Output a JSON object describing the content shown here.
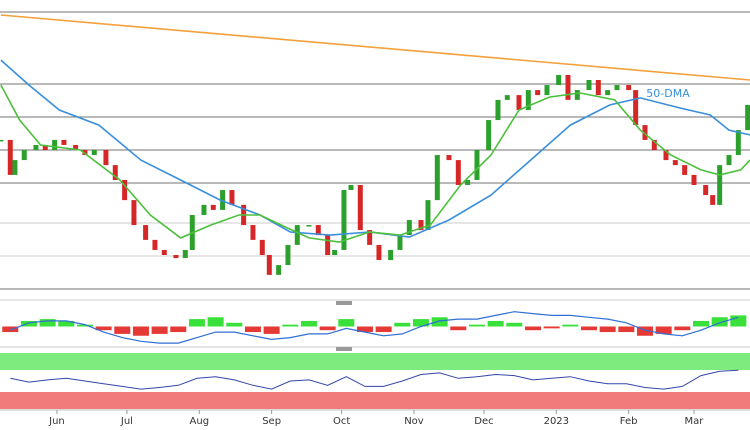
{
  "chart_data": [
    {
      "type": "candlestick",
      "xlim": [
        -24.4,
        297
      ],
      "ylim": [
        0,
        100
      ],
      "up_color": "#2ca02c",
      "down_color": "#d62728",
      "x": [
        -24,
        -20,
        -18,
        -14,
        -9,
        -5,
        -1,
        3,
        8,
        12,
        16,
        21,
        25,
        29,
        33,
        38,
        42,
        46,
        51,
        55,
        58,
        63,
        67,
        71,
        75,
        80,
        84,
        88,
        91,
        95,
        99,
        103,
        108,
        112,
        116,
        119,
        123,
        126,
        130,
        134,
        138,
        143,
        147,
        151,
        156,
        159,
        163,
        168,
        172,
        176,
        180,
        185,
        189,
        193,
        198,
        202,
        206,
        210,
        215,
        219,
        223,
        228,
        232,
        236,
        240,
        245,
        248,
        252,
        256,
        261,
        265,
        269,
        273,
        278,
        281,
        284,
        288,
        292,
        296
      ],
      "values": [
        53.6,
        41.1,
        46.4,
        50,
        51.8,
        50,
        53.6,
        51.8,
        50,
        48.2,
        50,
        44.6,
        39.3,
        32.1,
        23.2,
        17.9,
        14.3,
        12.5,
        11.4,
        14.3,
        26.8,
        30.4,
        28.6,
        35.7,
        30.4,
        23.2,
        17.9,
        12.5,
        5.4,
        8.9,
        16.1,
        23.2,
        23.2,
        19.6,
        12.5,
        14.3,
        35.7,
        37.5,
        21.4,
        16.1,
        10.7,
        14.3,
        19.6,
        25,
        21.4,
        32.1,
        48.2,
        46.4,
        37.5,
        39.3,
        50,
        60.7,
        67.9,
        69.6,
        64.3,
        71.4,
        69.6,
        73.2,
        76.8,
        67.9,
        71.4,
        75,
        69.6,
        71.4,
        73.2,
        71.4,
        58.9,
        53.6,
        50,
        46.4,
        44.6,
        41.1,
        37.5,
        33.9,
        30.4,
        44.6,
        48.2,
        57.1,
        66.1
      ],
      "lines": [
        {
          "label": "50-DMA",
          "color": "#3a8fdc",
          "x": [
            -24,
            -12,
            1,
            18,
            36,
            53,
            70,
            87,
            100,
            117,
            134,
            151,
            168,
            186,
            203,
            220,
            237,
            250,
            267,
            280,
            288,
            297
          ],
          "values": [
            82.1,
            73.2,
            64.3,
            58.9,
            46.4,
            39.3,
            32.1,
            26.8,
            20.7,
            19.6,
            20.7,
            18.9,
            25,
            33.9,
            46.4,
            58.9,
            66.1,
            68.6,
            65,
            62.5,
            57.1,
            55.4
          ]
        },
        {
          "color": "#4cc03c",
          "x": [
            -24,
            -16,
            -7,
            10,
            27,
            40,
            53,
            66,
            78,
            87,
            96,
            108,
            121,
            134,
            147,
            160,
            173,
            186,
            198,
            211,
            224,
            239,
            250,
            263,
            276,
            284,
            293,
            297
          ],
          "values": [
            73.2,
            60.7,
            51.8,
            50,
            39.3,
            26.8,
            18.6,
            23.2,
            26.8,
            26.8,
            23.2,
            18.6,
            17.1,
            20.7,
            19.6,
            23.2,
            37.5,
            48.2,
            64.3,
            68.9,
            70.4,
            67.9,
            57.1,
            48.2,
            42.9,
            41.1,
            42.9,
            46.4
          ]
        },
        {
          "color": "#f5a03a",
          "x": [
            -24,
            297
          ],
          "values": [
            98.2,
            75
          ]
        }
      ]
    },
    {
      "type": "macd",
      "xlim": [
        -24.4,
        297
      ],
      "ylim": [
        -1,
        1
      ],
      "x": [
        -20,
        -12,
        -4,
        4,
        12,
        20,
        28,
        36,
        44,
        52,
        60,
        68,
        76,
        84,
        92,
        100,
        108,
        116,
        124,
        132,
        140,
        148,
        156,
        164,
        172,
        180,
        188,
        196,
        204,
        212,
        220,
        228,
        236,
        244,
        252,
        260,
        268,
        276,
        284,
        292
      ],
      "histogram": {
        "up_color": "#39e039",
        "down_color": "#e53935",
        "values": [
          -0.3,
          0.3,
          0.4,
          0.3,
          0.1,
          -0.2,
          -0.4,
          -0.5,
          -0.4,
          -0.3,
          0.4,
          0.5,
          0.2,
          -0.3,
          -0.4,
          0.1,
          0.3,
          -0.2,
          0.4,
          -0.3,
          -0.3,
          0.2,
          0.4,
          0.5,
          -0.2,
          0.1,
          0.3,
          0.2,
          -0.2,
          -0.1,
          0.1,
          -0.2,
          -0.3,
          -0.3,
          -0.5,
          -0.4,
          -0.2,
          0.3,
          0.5,
          0.6
        ]
      },
      "line": {
        "color": "#2f6fd6",
        "values": [
          -0.2,
          0.2,
          0.3,
          0.3,
          0.1,
          -0.3,
          -0.6,
          -0.8,
          -0.9,
          -0.9,
          -0.6,
          -0.3,
          -0.3,
          -0.5,
          -0.7,
          -0.6,
          -0.4,
          -0.4,
          -0.1,
          -0.3,
          -0.5,
          -0.4,
          0,
          0.3,
          0.4,
          0.4,
          0.6,
          0.8,
          0.7,
          0.6,
          0.6,
          0.5,
          0.4,
          0.2,
          -0.2,
          -0.4,
          -0.5,
          -0.2,
          0.2,
          0.5
        ]
      }
    },
    {
      "type": "rsi",
      "xlim": [
        -24.4,
        297
      ],
      "ylim": [
        0,
        100
      ],
      "color": "#3346a8",
      "x": [
        -20,
        -12,
        -4,
        4,
        12,
        20,
        28,
        36,
        44,
        52,
        60,
        68,
        76,
        84,
        92,
        100,
        108,
        116,
        124,
        132,
        140,
        148,
        156,
        164,
        172,
        180,
        188,
        196,
        204,
        212,
        220,
        228,
        236,
        244,
        252,
        260,
        268,
        276,
        284,
        292
      ],
      "values": [
        55,
        48,
        52,
        55,
        50,
        45,
        40,
        35,
        38,
        42,
        55,
        58,
        52,
        42,
        35,
        50,
        52,
        42,
        58,
        40,
        40,
        50,
        62,
        65,
        55,
        58,
        62,
        60,
        52,
        55,
        58,
        50,
        45,
        45,
        38,
        35,
        40,
        60,
        68,
        70
      ],
      "xticks": [
        {
          "value": 0,
          "label": "Jun"
        },
        {
          "value": 30,
          "label": "Jul"
        },
        {
          "value": 61,
          "label": "Aug"
        },
        {
          "value": 92,
          "label": "Sep"
        },
        {
          "value": 122,
          "label": "Oct"
        },
        {
          "value": 153,
          "label": "Nov"
        },
        {
          "value": 183,
          "label": "Dec"
        },
        {
          "value": 214,
          "label": "2023"
        },
        {
          "value": 245,
          "label": "Feb"
        },
        {
          "value": 273,
          "label": "Mar"
        }
      ]
    }
  ]
}
